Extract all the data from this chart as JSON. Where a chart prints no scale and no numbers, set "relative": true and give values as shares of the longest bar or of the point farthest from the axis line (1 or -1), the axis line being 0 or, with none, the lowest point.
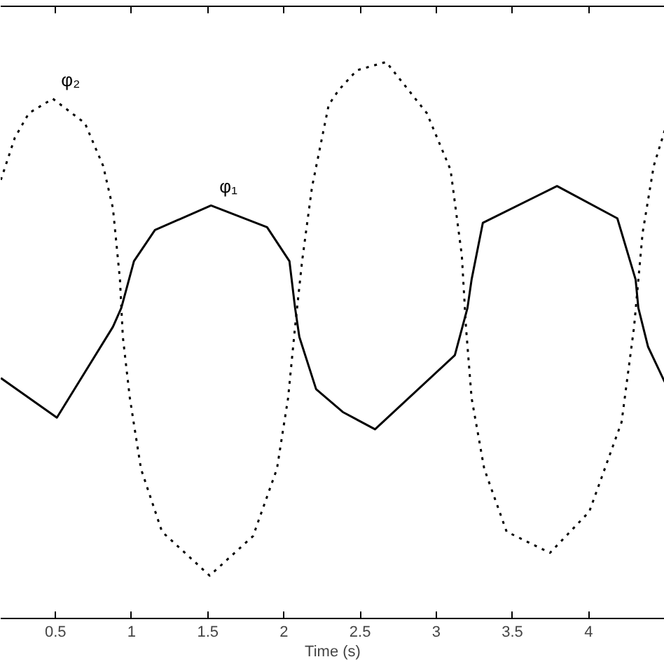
{
  "chart_data": {
    "type": "line",
    "relative": true,
    "xlabel": "Time (s)",
    "xlim": [
      0.14,
      4.5
    ],
    "xticks": [
      0.5,
      1,
      1.5,
      2,
      2.5,
      3,
      3.5,
      4
    ],
    "grid": false,
    "series": [
      {
        "name": "φ₁",
        "color": "#000000",
        "line_style": "solid",
        "x": [
          0.141,
          0.509,
          0.877,
          0.932,
          1.015,
          1.153,
          1.521,
          1.889,
          2.036,
          2.073,
          2.101,
          2.211,
          2.386,
          2.598,
          3.122,
          3.205,
          3.232,
          3.306,
          3.793,
          4.189,
          4.309,
          4.327,
          4.391,
          4.5
        ],
        "values": [
          0.432,
          0.361,
          0.524,
          0.558,
          0.642,
          0.698,
          0.742,
          0.703,
          0.642,
          0.558,
          0.506,
          0.412,
          0.371,
          0.34,
          0.473,
          0.558,
          0.609,
          0.711,
          0.777,
          0.719,
          0.609,
          0.558,
          0.488,
          0.425
        ]
      },
      {
        "name": "φ₂",
        "color": "#000000",
        "line_style": "dotted",
        "x": [
          0.141,
          0.233,
          0.325,
          0.482,
          0.693,
          0.813,
          0.877,
          0.923,
          0.942,
          0.988,
          1.061,
          1.199,
          1.512,
          1.797,
          1.954,
          2.027,
          2.073,
          2.119,
          2.184,
          2.294,
          2.358,
          2.478,
          2.671,
          2.938,
          3.094,
          3.168,
          3.195,
          3.232,
          3.315,
          3.462,
          3.747,
          4.005,
          4.217,
          4.299,
          4.355,
          4.428,
          4.5
        ],
        "values": [
          0.788,
          0.864,
          0.908,
          0.934,
          0.89,
          0.813,
          0.737,
          0.609,
          0.506,
          0.396,
          0.269,
          0.156,
          0.077,
          0.148,
          0.269,
          0.396,
          0.524,
          0.642,
          0.775,
          0.923,
          0.949,
          0.985,
          1.0,
          0.908,
          0.806,
          0.652,
          0.524,
          0.396,
          0.269,
          0.156,
          0.118,
          0.192,
          0.353,
          0.524,
          0.693,
          0.813,
          0.877
        ]
      }
    ]
  }
}
